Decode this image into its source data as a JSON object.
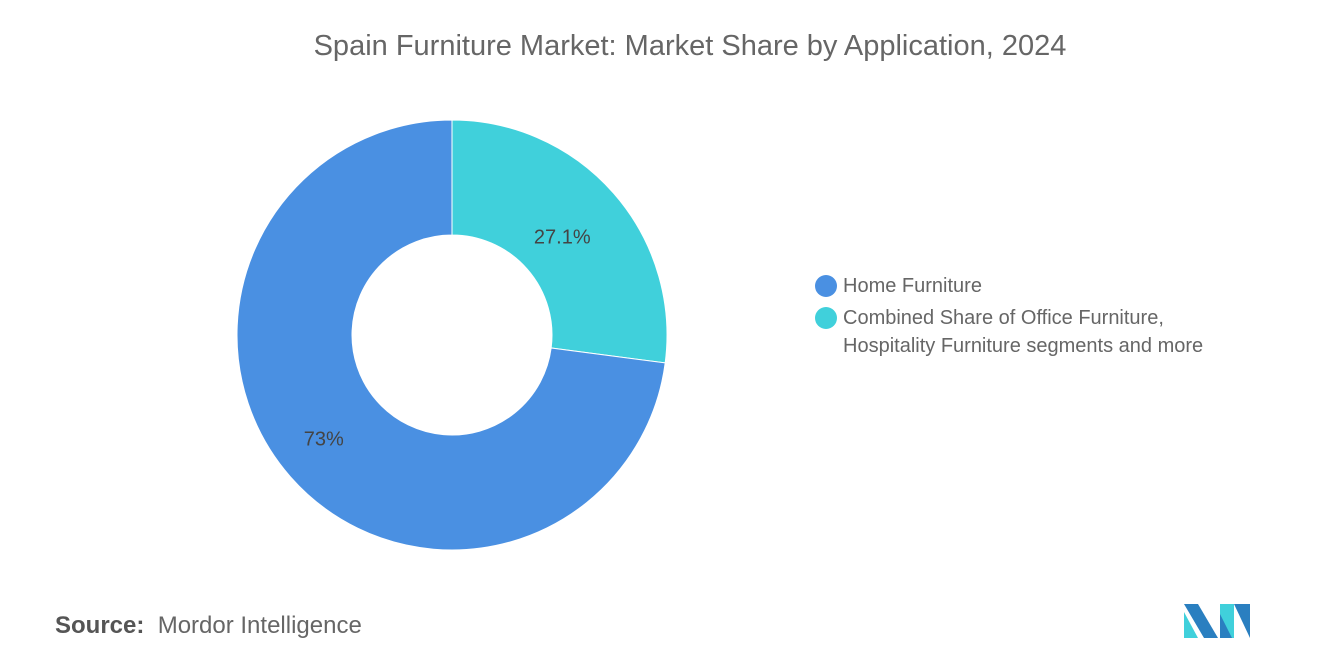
{
  "title": "Spain Furniture Market: Market Share by Application, 2024",
  "chart_data": {
    "type": "pie",
    "donut": true,
    "title": "Spain Furniture Market: Market Share by Application, 2024",
    "categories": [
      "Home Furniture",
      "Combined Share of Office Furniture, Hospitality Furniture segments and more"
    ],
    "values": [
      73,
      27.1
    ],
    "labels": [
      "73%",
      "27.1%"
    ],
    "colors": [
      "#4a90e2",
      "#40d0db"
    ],
    "legend_position": "right"
  },
  "legend": [
    {
      "label": "Home Furniture",
      "color": "#4a90e2"
    },
    {
      "label_line1": "Combined Share of Office Furniture,",
      "label_line2": "Hospitality Furniture segments and more",
      "color": "#40d0db"
    }
  ],
  "source": {
    "label": "Source:",
    "value": "Mordor Intelligence"
  },
  "logo": {
    "text": "Mordor Intelligence",
    "colors": [
      "#2a7fc0",
      "#40d0db"
    ]
  }
}
